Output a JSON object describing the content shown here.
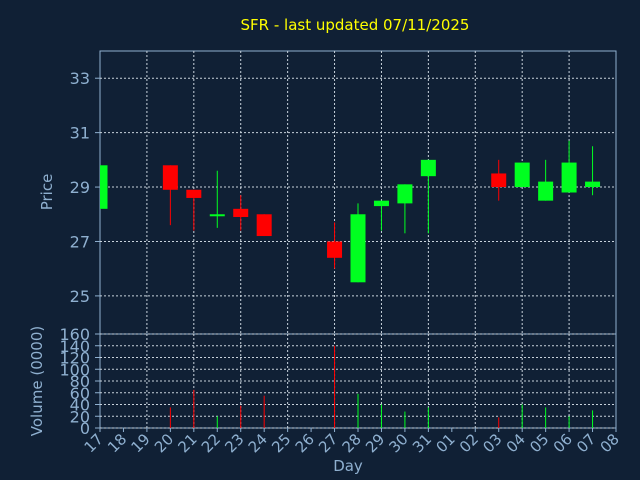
{
  "title": "SFR - last updated 07/11/2025",
  "colors": {
    "background": "#102035",
    "plot_border": "#8fb0d0",
    "grid": "#c8d2dc",
    "up": "#00ff20",
    "down": "#ff0000",
    "title": "#ffff00",
    "axis_text": "#8fb0d0"
  },
  "chart_data": [
    {
      "type": "candlestick",
      "ylabel": "Price",
      "ylim": [
        23.6,
        34.0
      ],
      "yticks": [
        25,
        27,
        29,
        31,
        33
      ],
      "grid": true,
      "candles": [
        {
          "day": "17",
          "open": 28.2,
          "high": 29.8,
          "low": 28.2,
          "close": 29.8
        },
        {
          "day": "20",
          "open": 29.8,
          "high": 29.8,
          "low": 27.6,
          "close": 28.9
        },
        {
          "day": "21",
          "open": 28.9,
          "high": 28.9,
          "low": 27.4,
          "close": 28.6
        },
        {
          "day": "22",
          "open": 28.0,
          "high": 29.6,
          "low": 27.5,
          "close": 28.0
        },
        {
          "day": "23",
          "open": 28.2,
          "high": 28.7,
          "low": 27.4,
          "close": 27.9
        },
        {
          "day": "24",
          "open": 28.0,
          "high": 28.0,
          "low": 27.2,
          "close": 27.2
        },
        {
          "day": "27",
          "open": 27.0,
          "high": 27.7,
          "low": 26.0,
          "close": 26.4
        },
        {
          "day": "28",
          "open": 25.5,
          "high": 28.4,
          "low": 25.5,
          "close": 28.0
        },
        {
          "day": "29",
          "open": 28.3,
          "high": 28.5,
          "low": 27.4,
          "close": 28.5
        },
        {
          "day": "30",
          "open": 28.4,
          "high": 29.1,
          "low": 27.3,
          "close": 29.1
        },
        {
          "day": "31",
          "open": 29.4,
          "high": 30.0,
          "low": 27.3,
          "close": 30.0
        },
        {
          "day": "03",
          "open": 29.5,
          "high": 30.0,
          "low": 28.5,
          "close": 29.0
        },
        {
          "day": "04",
          "open": 29.0,
          "high": 29.9,
          "low": 29.0,
          "close": 29.9
        },
        {
          "day": "05",
          "open": 28.5,
          "high": 30.0,
          "low": 28.5,
          "close": 29.2
        },
        {
          "day": "06",
          "open": 28.8,
          "high": 30.7,
          "low": 28.8,
          "close": 29.9
        },
        {
          "day": "07",
          "open": 29.0,
          "high": 30.5,
          "low": 28.7,
          "close": 29.2
        }
      ]
    },
    {
      "type": "bar",
      "ylabel": "Volume (0000)",
      "xlabel": "Day",
      "ylim": [
        0,
        160
      ],
      "yticks": [
        0,
        20,
        40,
        60,
        80,
        100,
        120,
        140,
        160
      ],
      "grid": true,
      "categories": [
        "17",
        "18",
        "19",
        "20",
        "21",
        "22",
        "23",
        "24",
        "25",
        "26",
        "27",
        "28",
        "29",
        "30",
        "31",
        "01",
        "02",
        "03",
        "04",
        "05",
        "06",
        "07",
        "08"
      ],
      "values": [
        {
          "day": "20",
          "value": 35,
          "direction": "down"
        },
        {
          "day": "21",
          "value": 65,
          "direction": "down"
        },
        {
          "day": "22",
          "value": 20,
          "direction": "up"
        },
        {
          "day": "23",
          "value": 38,
          "direction": "down"
        },
        {
          "day": "24",
          "value": 55,
          "direction": "down"
        },
        {
          "day": "27",
          "value": 140,
          "direction": "down"
        },
        {
          "day": "28",
          "value": 58,
          "direction": "up"
        },
        {
          "day": "29",
          "value": 40,
          "direction": "up"
        },
        {
          "day": "30",
          "value": 28,
          "direction": "up"
        },
        {
          "day": "31",
          "value": 35,
          "direction": "up"
        },
        {
          "day": "03",
          "value": 18,
          "direction": "down"
        },
        {
          "day": "04",
          "value": 40,
          "direction": "up"
        },
        {
          "day": "05",
          "value": 35,
          "direction": "up"
        },
        {
          "day": "06",
          "value": 20,
          "direction": "up"
        },
        {
          "day": "07",
          "value": 30,
          "direction": "up"
        }
      ]
    }
  ]
}
